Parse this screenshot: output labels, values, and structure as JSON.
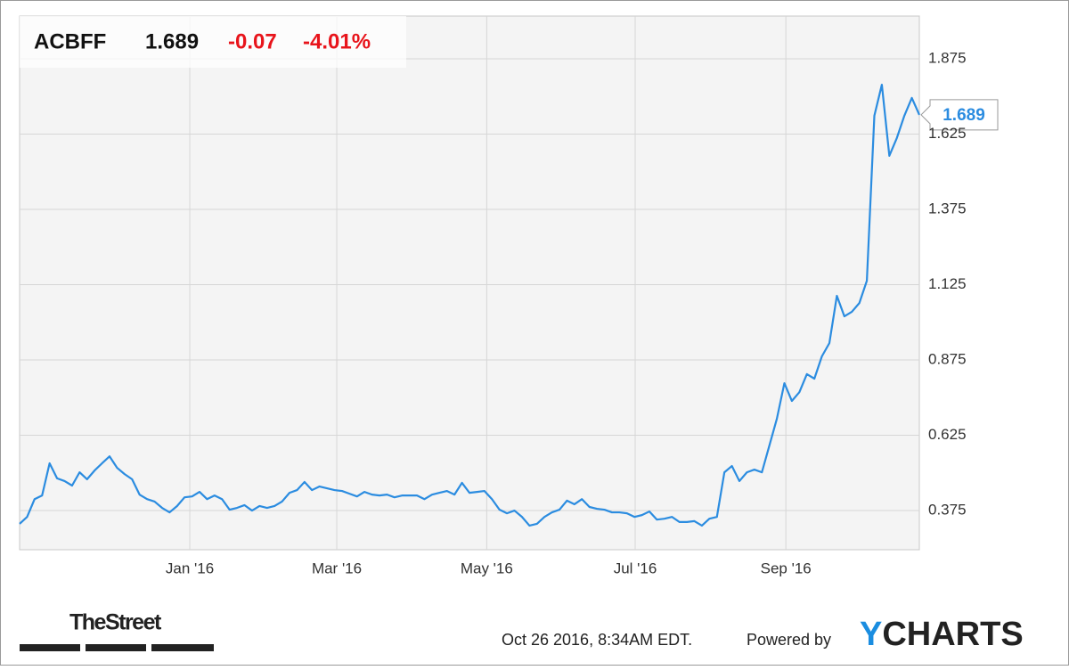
{
  "chart_data": {
    "type": "line",
    "series": [
      {
        "name": "ACBFF",
        "color": "#2b8ce0",
        "values": [
          0.331,
          0.354,
          0.413,
          0.425,
          0.532,
          0.482,
          0.473,
          0.458,
          0.502,
          0.479,
          0.508,
          0.532,
          0.555,
          0.517,
          0.496,
          0.479,
          0.428,
          0.413,
          0.405,
          0.384,
          0.369,
          0.39,
          0.419,
          0.422,
          0.437,
          0.413,
          0.425,
          0.413,
          0.378,
          0.384,
          0.393,
          0.375,
          0.39,
          0.384,
          0.39,
          0.405,
          0.434,
          0.443,
          0.47,
          0.443,
          0.455,
          0.449,
          0.443,
          0.44,
          0.431,
          0.422,
          0.437,
          0.428,
          0.425,
          0.428,
          0.419,
          0.425,
          0.425,
          0.425,
          0.413,
          0.428,
          0.434,
          0.44,
          0.428,
          0.467,
          0.434,
          0.437,
          0.44,
          0.413,
          0.378,
          0.366,
          0.375,
          0.354,
          0.325,
          0.331,
          0.354,
          0.369,
          0.378,
          0.408,
          0.396,
          0.413,
          0.387,
          0.381,
          0.378,
          0.369,
          0.369,
          0.366,
          0.354,
          0.36,
          0.372,
          0.345,
          0.348,
          0.354,
          0.337,
          0.337,
          0.34,
          0.325,
          0.348,
          0.354,
          0.502,
          0.523,
          0.473,
          0.502,
          0.511,
          0.502,
          0.591,
          0.68,
          0.798,
          0.739,
          0.768,
          0.828,
          0.813,
          0.887,
          0.931,
          1.088,
          1.02,
          1.035,
          1.064,
          1.138,
          1.686,
          1.789,
          1.553,
          1.612,
          1.686,
          1.745,
          1.689
        ]
      }
    ],
    "change": -0.07,
    "change_percent": "-4.01%",
    "xlim": [
      0,
      120
    ],
    "xticks": [
      {
        "value": 22.7,
        "label": "Jan '16"
      },
      {
        "value": 42.3,
        "label": "Mar '16"
      },
      {
        "value": 62.3,
        "label": "May '16"
      },
      {
        "value": 82.1,
        "label": "Jul '16"
      },
      {
        "value": 102.2,
        "label": "Sep '16"
      }
    ],
    "ylim": [
      0.245,
      2.017
    ],
    "yticks": [
      0.375,
      0.625,
      0.875,
      1.125,
      1.375,
      1.625,
      1.875
    ],
    "grid": true
  },
  "footer": {
    "brand": "TheStreet",
    "timestamp": "Oct 26 2016, 8:34AM EDT.",
    "powered_by": "Powered by",
    "logo": "YCHARTS"
  }
}
